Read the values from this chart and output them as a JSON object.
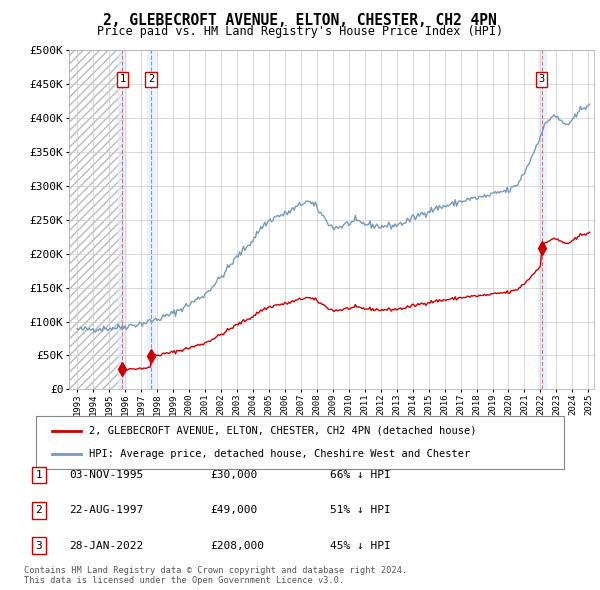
{
  "title": "2, GLEBECROFT AVENUE, ELTON, CHESTER, CH2 4PN",
  "subtitle": "Price paid vs. HM Land Registry's House Price Index (HPI)",
  "ylim": [
    0,
    500000
  ],
  "yticks": [
    0,
    50000,
    100000,
    150000,
    200000,
    250000,
    300000,
    350000,
    400000,
    450000,
    500000
  ],
  "ytick_labels": [
    "£0",
    "£50K",
    "£100K",
    "£150K",
    "£200K",
    "£250K",
    "£300K",
    "£350K",
    "£400K",
    "£450K",
    "£500K"
  ],
  "sale_dates_decimal": [
    1995.839,
    1997.635,
    2022.074
  ],
  "sale_prices": [
    30000,
    49000,
    208000
  ],
  "sale_labels": [
    "1",
    "2",
    "3"
  ],
  "hpi_color": "#7799bb",
  "sale_color": "#cc0000",
  "grid_color": "#cccccc",
  "bg_color": "#ffffff",
  "legend_label_red": "2, GLEBECROFT AVENUE, ELTON, CHESTER, CH2 4PN (detached house)",
  "legend_label_blue": "HPI: Average price, detached house, Cheshire West and Chester",
  "footer": "Contains HM Land Registry data © Crown copyright and database right 2024.\nThis data is licensed under the Open Government Licence v3.0.",
  "xstart_year": 1993,
  "xend_year": 2025,
  "table_rows": [
    [
      "1",
      "03-NOV-1995",
      "£30,000",
      "66% ↓ HPI"
    ],
    [
      "2",
      "22-AUG-1997",
      "£49,000",
      "51% ↓ HPI"
    ],
    [
      "3",
      "28-JAN-2022",
      "£208,000",
      "45% ↓ HPI"
    ]
  ]
}
